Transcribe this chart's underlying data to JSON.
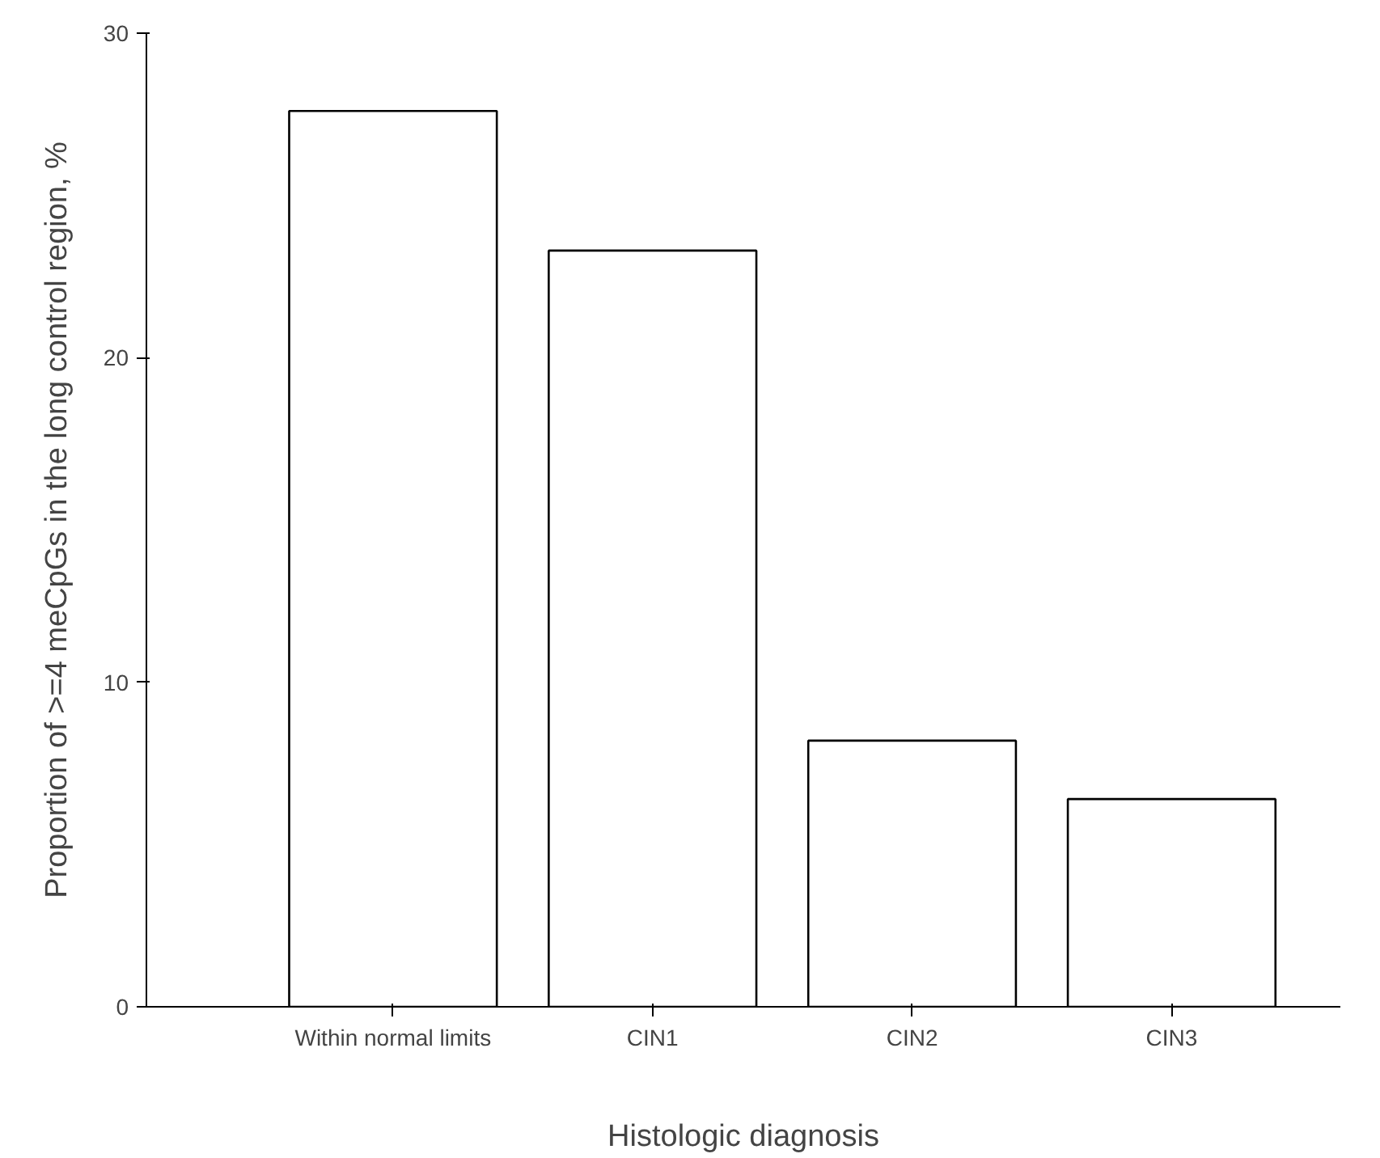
{
  "chart_data": {
    "type": "bar",
    "xlabel": "Histologic diagnosis",
    "ylabel": "Proportion of >=4 meCpGs in the long control region, %",
    "categories": [
      "Within normal limits",
      "CIN1",
      "CIN2",
      "CIN3"
    ],
    "values": [
      27.6,
      23.3,
      8.2,
      6.4
    ],
    "color": "#ffffff",
    "ylim": [
      0,
      30
    ],
    "yticks": [
      0,
      10,
      20,
      30
    ],
    "grid": false
  }
}
